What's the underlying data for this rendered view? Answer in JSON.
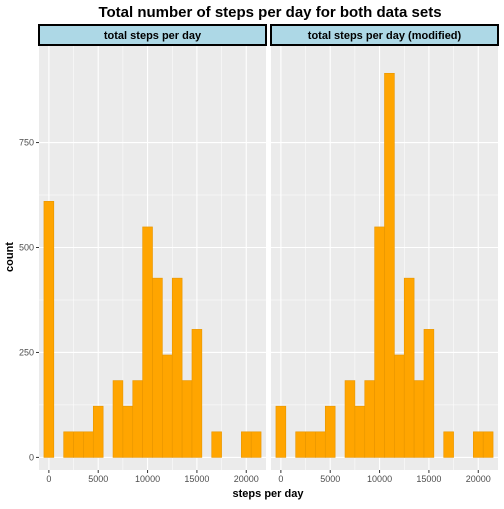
{
  "chart_data": {
    "type": "bar",
    "title": "Total number of steps per day for both data sets",
    "xlabel": "steps per day",
    "ylabel": "count",
    "xlim": [
      -1000,
      22000
    ],
    "ylim": [
      -30,
      980
    ],
    "x_ticks": [
      0,
      5000,
      10000,
      15000,
      20000
    ],
    "y_ticks": [
      0,
      250,
      500,
      750
    ],
    "bin_width": 1000,
    "grid": true,
    "colors": {
      "fill": "#FFA500",
      "edge": "#E69500",
      "panel": "#EBEBEB",
      "strip": "#ADD8E6"
    },
    "panels": [
      {
        "name": "total steps per day",
        "bins": [
          {
            "x": 0,
            "count": 610
          },
          {
            "x": 2000,
            "count": 61
          },
          {
            "x": 3000,
            "count": 61
          },
          {
            "x": 4000,
            "count": 61
          },
          {
            "x": 5000,
            "count": 122
          },
          {
            "x": 7000,
            "count": 183
          },
          {
            "x": 8000,
            "count": 122
          },
          {
            "x": 9000,
            "count": 183
          },
          {
            "x": 10000,
            "count": 549
          },
          {
            "x": 11000,
            "count": 427
          },
          {
            "x": 12000,
            "count": 244
          },
          {
            "x": 13000,
            "count": 427
          },
          {
            "x": 14000,
            "count": 183
          },
          {
            "x": 15000,
            "count": 305
          },
          {
            "x": 17000,
            "count": 61
          },
          {
            "x": 20000,
            "count": 61
          },
          {
            "x": 21000,
            "count": 61
          }
        ]
      },
      {
        "name": "total steps per day (modified)",
        "bins": [
          {
            "x": 0,
            "count": 122
          },
          {
            "x": 2000,
            "count": 61
          },
          {
            "x": 3000,
            "count": 61
          },
          {
            "x": 4000,
            "count": 61
          },
          {
            "x": 5000,
            "count": 122
          },
          {
            "x": 7000,
            "count": 183
          },
          {
            "x": 8000,
            "count": 122
          },
          {
            "x": 9000,
            "count": 183
          },
          {
            "x": 10000,
            "count": 549
          },
          {
            "x": 11000,
            "count": 915
          },
          {
            "x": 12000,
            "count": 244
          },
          {
            "x": 13000,
            "count": 427
          },
          {
            "x": 14000,
            "count": 183
          },
          {
            "x": 15000,
            "count": 305
          },
          {
            "x": 17000,
            "count": 61
          },
          {
            "x": 20000,
            "count": 61
          },
          {
            "x": 21000,
            "count": 61
          }
        ]
      }
    ]
  }
}
